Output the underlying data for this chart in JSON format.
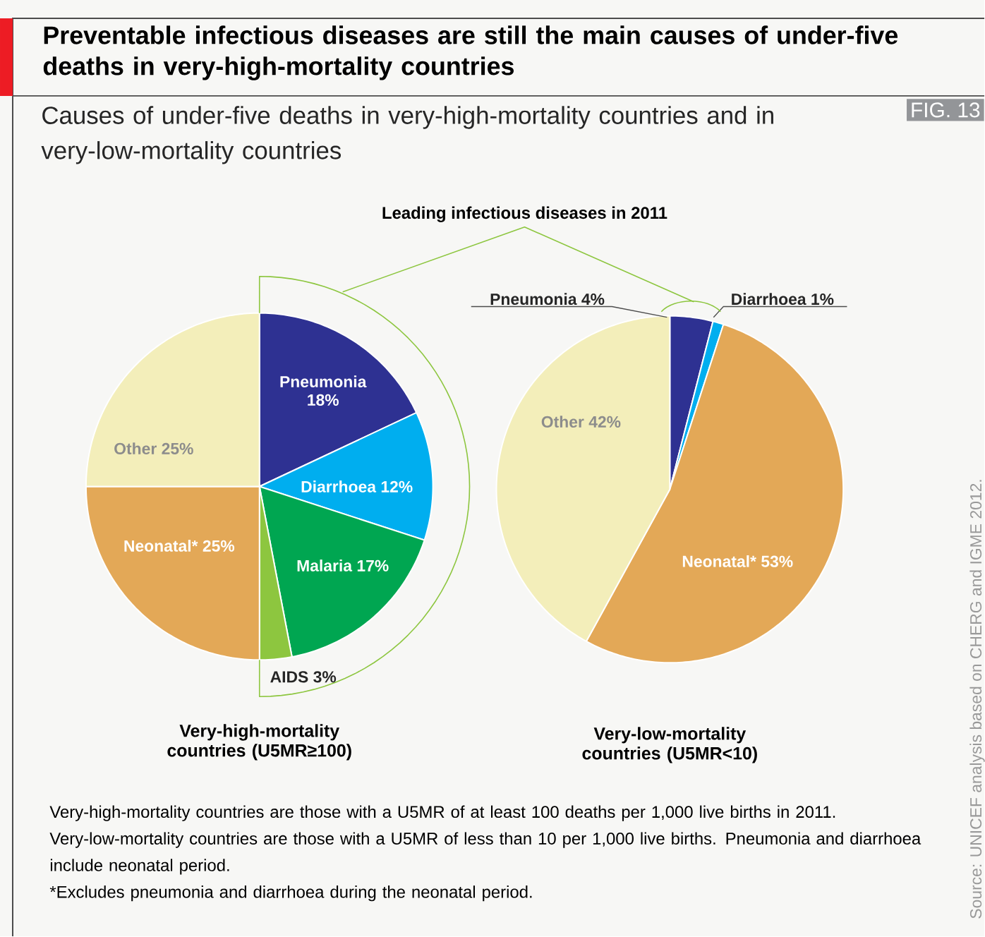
{
  "chart_data": [
    {
      "type": "pie",
      "title": "Preventable infectious diseases are still the main causes of under-five deaths in very-high-mortality countries",
      "subtitle": "Causes of under-five deaths in very-high-mortality countries and in very-low-mortality countries",
      "xlabel": "Very-high-mortality countries (U5MR≥100)",
      "categories": [
        "Pneumonia",
        "Diarrhoea",
        "Malaria",
        "AIDS",
        "Neonatal*",
        "Other"
      ],
      "values": [
        18,
        12,
        17,
        3,
        25,
        25
      ],
      "colors": [
        "#2e3192",
        "#00aeef",
        "#00a651",
        "#8dc63f",
        "#e3a857",
        "#f3eeba"
      ],
      "value_labels": [
        "18%",
        "12%",
        "17%",
        "3%",
        "25%",
        "25%"
      ],
      "annotations": [
        "FIG. 13",
        "Leading infectious diseases in 2011",
        "Very-high-mortality countries are those with a U5MR of at least 100 deaths per 1,000 live births in 2011.",
        "Very-low-mortality countries are those with a U5MR of less than 10 per 1,000 live births. Pneumonia and diarrhoea include neonatal period.",
        "*Excludes pneumonia and diarrhoea during the neonatal period.",
        "Source: UNICEF analysis based on CHERG and IGME 2012."
      ]
    },
    {
      "type": "pie",
      "xlabel": "Very-low-mortality countries (U5MR<10)",
      "categories": [
        "Pneumonia",
        "Diarrhoea",
        "Neonatal*",
        "Other"
      ],
      "values": [
        4,
        1,
        53,
        42
      ],
      "colors": [
        "#2e3192",
        "#00aeef",
        "#e3a857",
        "#f3eeba"
      ],
      "value_labels": [
        "4%",
        "1%",
        "53%",
        "42%"
      ]
    }
  ]
}
